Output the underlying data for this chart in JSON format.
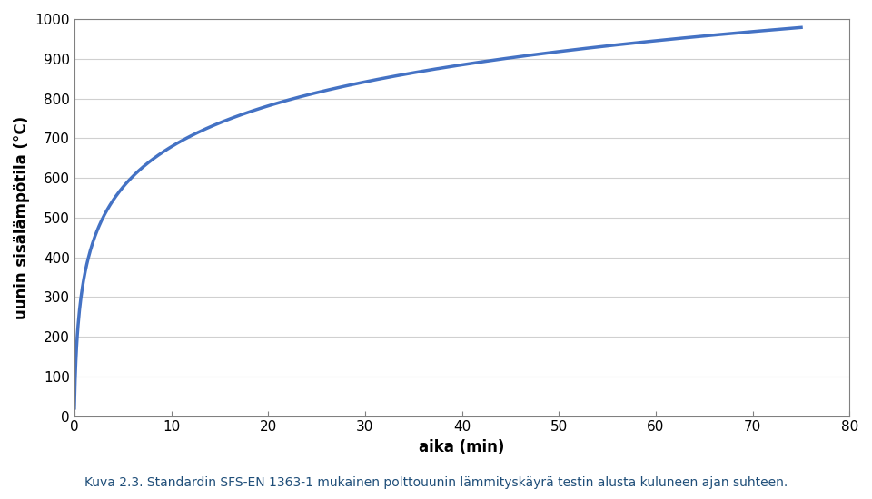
{
  "title": "",
  "ylabel": "uunin sisälämpötila (°C)",
  "xlabel": "aika (min)",
  "caption_bold": "Kuva 2.3.",
  "caption_normal": " Standardin SFS-EN 1363-1 mukainen polttouunin lämmityskäyrä testin alusta kuluneen ajan suhteen.",
  "xlim": [
    0,
    80
  ],
  "ylim": [
    0,
    1000
  ],
  "xticks": [
    0,
    10,
    20,
    30,
    40,
    50,
    60,
    70,
    80
  ],
  "yticks": [
    0,
    100,
    200,
    300,
    400,
    500,
    600,
    700,
    800,
    900,
    1000
  ],
  "line_color": "#4472C4",
  "line_width": 2.5,
  "curve_t_max": 75,
  "T0": 20,
  "background_color": "#ffffff",
  "grid_color": "#d0d0d0",
  "axis_color": "#808080",
  "tick_fontsize": 11,
  "label_fontsize": 12,
  "caption_fontsize": 10
}
